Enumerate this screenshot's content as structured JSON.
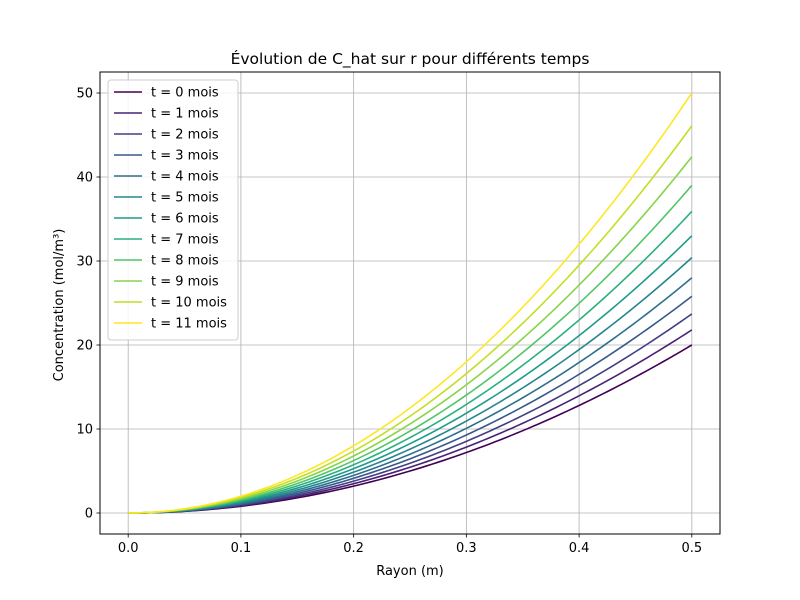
{
  "chart_data": {
    "type": "line",
    "title": "Évolution de C_hat sur r pour différents temps",
    "xlabel": "Rayon (m)",
    "ylabel": "Concentration (mol/m³)",
    "xlim": [
      -0.025,
      0.525
    ],
    "ylim": [
      -2.5,
      52.5
    ],
    "xticks": [
      0.0,
      0.1,
      0.2,
      0.3,
      0.4,
      0.5
    ],
    "xtick_labels": [
      "0.0",
      "0.1",
      "0.2",
      "0.3",
      "0.4",
      "0.5"
    ],
    "yticks": [
      0,
      10,
      20,
      30,
      40,
      50
    ],
    "ytick_labels": [
      "0",
      "10",
      "20",
      "30",
      "40",
      "50"
    ],
    "grid": true,
    "legend_position": "top-left",
    "curve_model": "C(r) = k * r^2, r from 0.0 to 0.5",
    "r_range": [
      0.0,
      0.5
    ],
    "series": [
      {
        "name": "t = 0 mois",
        "color": "#440154",
        "end_value": 20.0
      },
      {
        "name": "t = 1 mois",
        "color": "#482173",
        "end_value": 21.8
      },
      {
        "name": "t = 2 mois",
        "color": "#433e85",
        "end_value": 23.7
      },
      {
        "name": "t = 3 mois",
        "color": "#38588c",
        "end_value": 25.8
      },
      {
        "name": "t = 4 mois",
        "color": "#2d708e",
        "end_value": 28.0
      },
      {
        "name": "t = 5 mois",
        "color": "#25858e",
        "end_value": 30.4
      },
      {
        "name": "t = 6 mois",
        "color": "#1e9b8a",
        "end_value": 33.0
      },
      {
        "name": "t = 7 mois",
        "color": "#2ab07f",
        "end_value": 35.9
      },
      {
        "name": "t = 8 mois",
        "color": "#52c569",
        "end_value": 39.0
      },
      {
        "name": "t = 9 mois",
        "color": "#86d549",
        "end_value": 42.4
      },
      {
        "name": "t = 10 mois",
        "color": "#c2df23",
        "end_value": 46.1
      },
      {
        "name": "t = 11 mois",
        "color": "#fde725",
        "end_value": 50.0
      }
    ]
  }
}
